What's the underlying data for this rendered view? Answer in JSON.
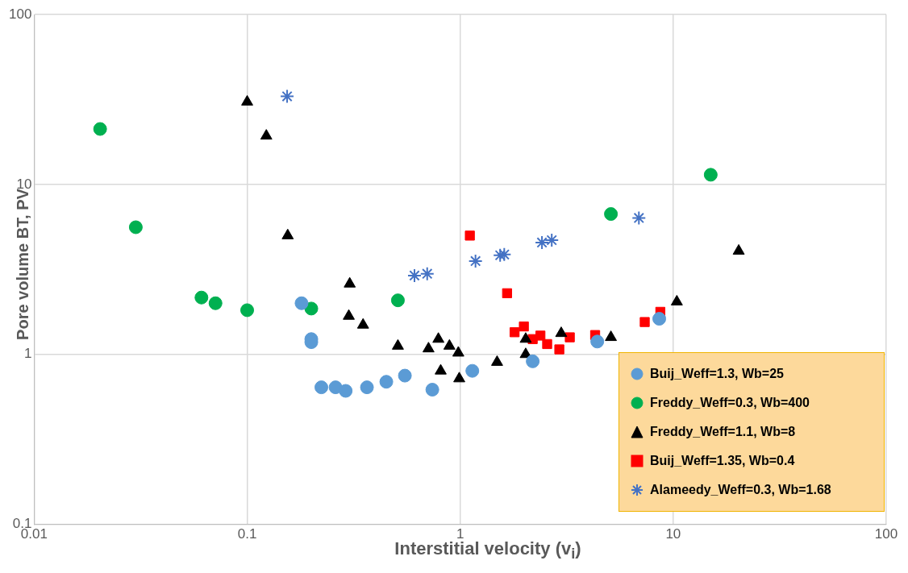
{
  "chart_data": {
    "type": "scatter",
    "xlabel": "Interstitial velocity (v$_{i}$)",
    "ylabel": "Pore volume BT, PV",
    "log": "xy",
    "grid": true,
    "legend": "bottom right",
    "xlim": [
      0.01,
      100
    ],
    "xticks": [
      0.01,
      0.1,
      1,
      10,
      100
    ],
    "ylim": [
      0.1,
      100
    ],
    "yticks": [
      0.1,
      1,
      10,
      100
    ],
    "series": [
      {
        "name": "Buij_Weff=1.3, Wb=25",
        "color": "#5b9bd5",
        "marker": "circle",
        "x": [
          0.18,
          0.2,
          0.2,
          0.223,
          0.26,
          0.29,
          0.365,
          0.45,
          0.55,
          0.74,
          1.14,
          2.19,
          4.4,
          8.6
        ],
        "values": [
          2.0,
          1.23,
          1.18,
          0.64,
          0.64,
          0.61,
          0.64,
          0.69,
          0.75,
          0.62,
          0.8,
          0.91,
          1.19,
          1.62
        ]
      },
      {
        "name": "Freddy_Weff=0.3, Wb=400",
        "color": "#00b050",
        "marker": "circle",
        "x": [
          0.0204,
          0.03,
          0.061,
          0.071,
          0.1,
          0.2,
          0.51,
          5.1,
          15
        ],
        "values": [
          21.2,
          5.6,
          2.16,
          2.0,
          1.82,
          1.86,
          2.08,
          6.7,
          11.4
        ]
      },
      {
        "name": "Freddy_Weff=1.1, Wb=8",
        "color": "#000000",
        "marker": "triangle",
        "x": [
          0.1,
          0.123,
          0.155,
          0.303,
          0.3,
          0.35,
          0.51,
          0.71,
          0.79,
          0.89,
          0.98,
          0.81,
          0.99,
          1.49,
          2.03,
          2.03,
          2.98,
          5.1,
          10.4,
          20.3
        ],
        "values": [
          30.6,
          19.3,
          5.0,
          2.6,
          1.68,
          1.49,
          1.12,
          1.08,
          1.23,
          1.12,
          1.02,
          0.8,
          0.72,
          0.9,
          1.23,
          1.0,
          1.33,
          1.26,
          2.04,
          4.06
        ]
      },
      {
        "name": "Buij_Weff=1.35, Wb=0.4",
        "color": "#ff0000",
        "marker": "square",
        "x": [
          1.11,
          1.66,
          1.8,
          1.99,
          2.19,
          2.38,
          2.56,
          2.92,
          3.27,
          4.3,
          7.35,
          8.7
        ],
        "values": [
          5.0,
          2.29,
          1.35,
          1.46,
          1.23,
          1.29,
          1.15,
          1.07,
          1.26,
          1.3,
          1.55,
          1.78
        ]
      },
      {
        "name": "Alameedy_Weff=0.3, Wb=1.68",
        "color": "#4472c4",
        "marker": "cross",
        "x": [
          0.154,
          0.61,
          0.7,
          1.18,
          1.54,
          1.61,
          2.42,
          2.69,
          6.9
        ],
        "values": [
          33,
          2.91,
          2.98,
          3.54,
          3.83,
          3.87,
          4.55,
          4.7,
          6.35
        ]
      }
    ]
  }
}
